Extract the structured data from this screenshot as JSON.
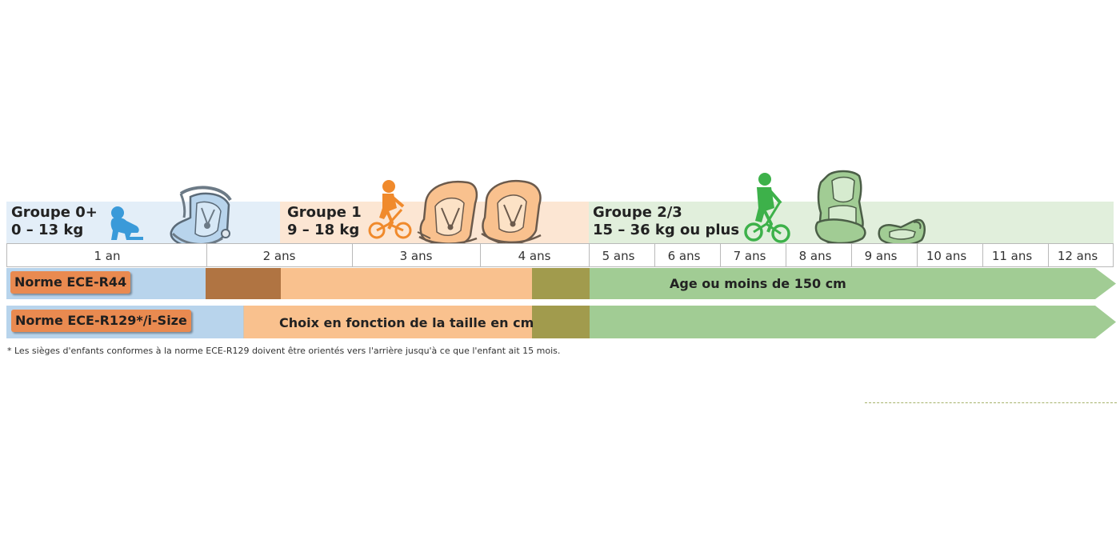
{
  "colors": {
    "group0_band": "#e3eef8",
    "group1_band": "#fce6d3",
    "group23_band": "#e1efdc",
    "blue": "#b8d4ec",
    "brown": "#b07442",
    "orange": "#f9c18e",
    "olive": "#a19b4d",
    "green": "#a1cc94",
    "badge": "#e98a50",
    "icon_blue": "#3a9ad9",
    "icon_orange": "#f08a2c",
    "icon_green": "#3db14a"
  },
  "groups": [
    {
      "title": "Groupe 0+",
      "weight": "0 – 13 kg"
    },
    {
      "title": "Groupe 1",
      "weight": "9 – 18 kg"
    },
    {
      "title": "Groupe 2/3",
      "weight": "15 – 36 kg ou plus"
    }
  ],
  "ages": [
    "1 an",
    "2 ans",
    "3 ans",
    "4 ans",
    "5 ans",
    "6 ans",
    "7 ans",
    "8 ans",
    "9 ans",
    "10 ans",
    "11 ans",
    "12 ans"
  ],
  "norms": {
    "r44": {
      "label": "Norme ECE-R44",
      "text": "Age ou moins de 150 cm"
    },
    "r129": {
      "label": "Norme ECE-R129*/i-Size",
      "text": "Choix en fonction de la taille en cm"
    }
  },
  "footnote": "* Les sièges d'enfants conformes à la norme ECE-R129 doivent être orientés vers l'arrière jusqu'à ce que l'enfant ait 15 mois.",
  "icons": {
    "baby": "crawling-baby-icon",
    "infant_seat": "infant-carrier-seat-icon",
    "child_bike": "child-on-bike-icon",
    "seat_group1": "group1-car-seat-icon",
    "child_balance_bike": "child-on-balance-bike-icon",
    "seat_group23": "group23-high-back-booster-icon",
    "booster": "booster-cushion-icon"
  }
}
